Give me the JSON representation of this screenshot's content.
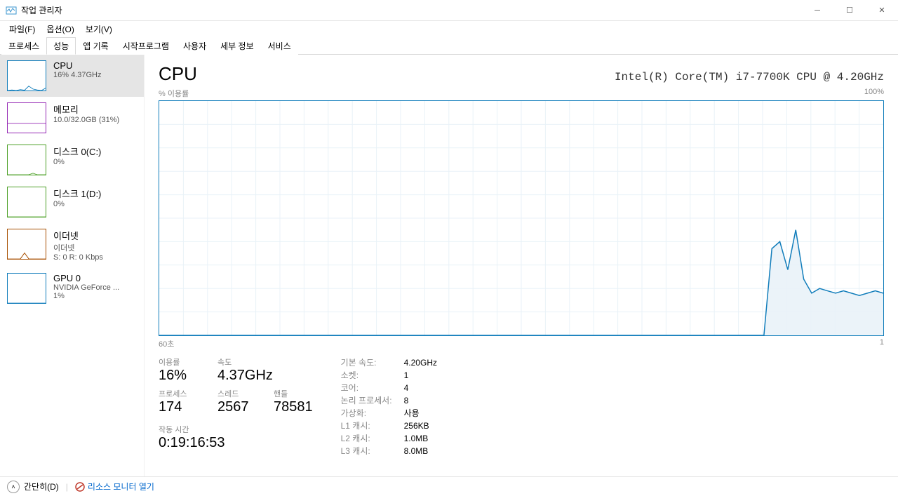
{
  "window": {
    "title": "작업 관리자",
    "menu": {
      "file": "파일(F)",
      "options": "옵션(O)",
      "view": "보기(V)"
    },
    "tabs": [
      "프로세스",
      "성능",
      "앱 기록",
      "시작프로그램",
      "사용자",
      "세부 정보",
      "서비스"
    ],
    "active_tab_index": 1
  },
  "sidebar_items": [
    {
      "title": "CPU",
      "sub": "16% 4.37GHz",
      "color": "#117dbb",
      "selected": true,
      "spark": [
        0,
        2,
        0,
        3,
        1,
        15,
        5,
        2,
        0,
        8
      ]
    },
    {
      "title": "메모리",
      "sub": "10.0/32.0GB (31%)",
      "color": "#9528b4",
      "selected": false,
      "spark": [
        31,
        31,
        31,
        31,
        31,
        31,
        31,
        31,
        31,
        31
      ]
    },
    {
      "title": "디스크 0(C:)",
      "sub": "0%",
      "color": "#4ca026",
      "selected": false,
      "spark": [
        0,
        0,
        0,
        0,
        0,
        0,
        5,
        0,
        0,
        0
      ]
    },
    {
      "title": "디스크 1(D:)",
      "sub": "0%",
      "color": "#4ca026",
      "selected": false,
      "spark": [
        0,
        0,
        0,
        0,
        0,
        0,
        0,
        0,
        0,
        0
      ]
    },
    {
      "title": "이더넷",
      "sub": "이더넷",
      "sub2": "S: 0  R: 0 Kbps",
      "color": "#a74f01",
      "selected": false,
      "spark": [
        0,
        0,
        0,
        0,
        20,
        0,
        0,
        0,
        0,
        0
      ]
    },
    {
      "title": "GPU 0",
      "sub": "NVIDIA GeForce ...",
      "sub2": "1%",
      "color": "#117dbb",
      "selected": false,
      "spark": [
        0,
        0,
        0,
        0,
        0,
        0,
        0,
        0,
        0,
        0
      ]
    }
  ],
  "main": {
    "title": "CPU",
    "model": "Intel(R) Core(TM) i7-7700K CPU @ 4.20GHz",
    "chart": {
      "y_label": "% 이용률",
      "y_max": "100%",
      "x_left": "60초",
      "x_right": "1",
      "border_color": "#117dbb",
      "grid_color": "#e9f2f8",
      "fill_color": "#e9f2f8",
      "line_color": "#117dbb",
      "grid_rows": 10,
      "grid_cols": 30,
      "data": [
        0,
        0,
        0,
        0,
        0,
        0,
        0,
        0,
        0,
        0,
        0,
        0,
        0,
        0,
        0,
        0,
        0,
        0,
        0,
        0,
        0,
        0,
        0,
        0,
        0,
        0,
        0,
        0,
        0,
        0,
        0,
        0,
        0,
        0,
        0,
        0,
        0,
        0,
        0,
        0,
        0,
        0,
        0,
        0,
        0,
        0,
        0,
        0,
        0,
        0,
        0,
        0,
        0,
        0,
        0,
        0,
        0,
        0,
        0,
        0,
        0,
        0,
        0,
        0,
        0,
        0,
        0,
        0,
        0,
        0,
        0,
        0,
        0,
        0,
        0,
        0,
        0,
        37,
        40,
        28,
        45,
        24,
        18,
        20,
        19,
        18,
        19,
        18,
        17,
        18,
        19,
        18
      ]
    },
    "stats": {
      "labels": {
        "util": "이용률",
        "speed": "속도",
        "processes": "프로세스",
        "threads": "스레드",
        "handles": "핸들",
        "uptime": "작동 시간"
      },
      "util": "16%",
      "speed": "4.37GHz",
      "processes": "174",
      "threads": "2567",
      "handles": "78581",
      "uptime": "0:19:16:53"
    },
    "specs": {
      "labels": {
        "base_speed": "기본 속도:",
        "sockets": "소켓:",
        "cores": "코어:",
        "logical": "논리 프로세서:",
        "virt": "가상화:",
        "l1": "L1 캐시:",
        "l2": "L2 캐시:",
        "l3": "L3 캐시:"
      },
      "base_speed": "4.20GHz",
      "sockets": "1",
      "cores": "4",
      "logical": "8",
      "virt": "사용",
      "l1": "256KB",
      "l2": "1.0MB",
      "l3": "8.0MB"
    }
  },
  "statusbar": {
    "toggle": "간단히(D)",
    "link": "리소스 모니터 열기"
  }
}
